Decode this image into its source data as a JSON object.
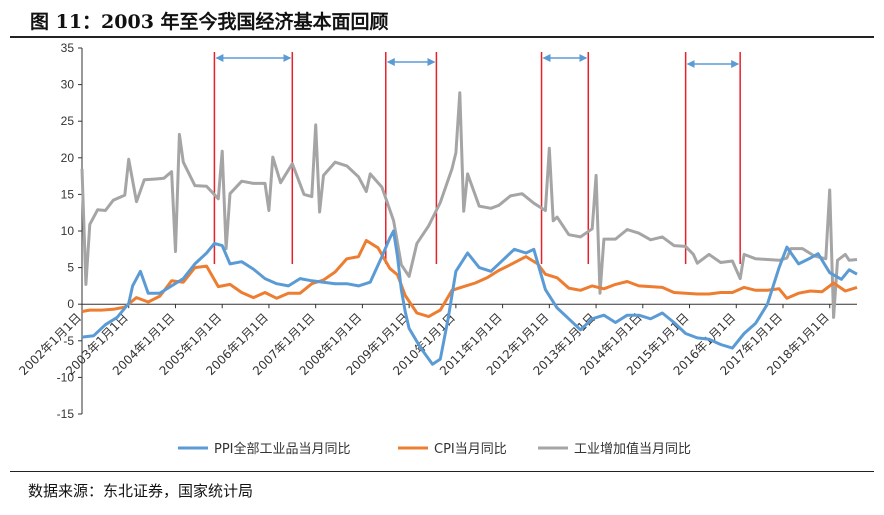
{
  "figure": {
    "title": "图 11：2003 年至今我国经济基本面回顾",
    "source": "数据来源：东北证券，国家统计局"
  },
  "chart_data": {
    "type": "line",
    "ylim": [
      -15,
      35
    ],
    "xlim": [
      "2002-01",
      "2018-08"
    ],
    "y_ticks": [
      -15,
      -10,
      -5,
      0,
      5,
      10,
      15,
      20,
      25,
      30,
      35
    ],
    "x_ticks": [
      {
        "date": "2002-01",
        "label": "2002年1月1日"
      },
      {
        "date": "2003-01",
        "label": "2003年1月1日"
      },
      {
        "date": "2004-01",
        "label": "2004年1月1日"
      },
      {
        "date": "2005-01",
        "label": "2005年1月1日"
      },
      {
        "date": "2006-01",
        "label": "2006年1月1日"
      },
      {
        "date": "2007-01",
        "label": "2007年1月1日"
      },
      {
        "date": "2008-01",
        "label": "2008年1月1日"
      },
      {
        "date": "2009-01",
        "label": "2009年1月1日"
      },
      {
        "date": "2010-01",
        "label": "2010年1月1日"
      },
      {
        "date": "2011-01",
        "label": "2011年1月1日"
      },
      {
        "date": "2012-01",
        "label": "2012年1月1日"
      },
      {
        "date": "2013-01",
        "label": "2013年1月1日"
      },
      {
        "date": "2014-01",
        "label": "2014年1月1日"
      },
      {
        "date": "2015-01",
        "label": "2015年1月1日"
      },
      {
        "date": "2016-01",
        "label": "2016年1月1日"
      },
      {
        "date": "2017-01",
        "label": "2017年1月1日"
      },
      {
        "date": "2018-01",
        "label": "2018年1月1日"
      }
    ],
    "legend_position": "bottom",
    "series": [
      {
        "name": "PPI全部工业品当月同比",
        "color": "#5B9BD5",
        "points": [
          [
            "2002-01",
            -4.5
          ],
          [
            "2002-04",
            -4.3
          ],
          [
            "2002-07",
            -2.8
          ],
          [
            "2002-10",
            -1.8
          ],
          [
            "2003-01",
            0.1
          ],
          [
            "2003-02",
            2.5
          ],
          [
            "2003-04",
            4.5
          ],
          [
            "2003-06",
            1.5
          ],
          [
            "2003-09",
            1.5
          ],
          [
            "2003-12",
            2.5
          ],
          [
            "2004-03",
            3.5
          ],
          [
            "2004-06",
            5.5
          ],
          [
            "2004-09",
            7.0
          ],
          [
            "2004-11",
            8.3
          ],
          [
            "2005-01",
            8.0
          ],
          [
            "2005-03",
            5.5
          ],
          [
            "2005-06",
            5.8
          ],
          [
            "2005-09",
            4.8
          ],
          [
            "2005-12",
            3.5
          ],
          [
            "2006-03",
            2.8
          ],
          [
            "2006-06",
            2.5
          ],
          [
            "2006-09",
            3.5
          ],
          [
            "2006-12",
            3.2
          ],
          [
            "2007-03",
            3.0
          ],
          [
            "2007-06",
            2.8
          ],
          [
            "2007-09",
            2.8
          ],
          [
            "2007-12",
            2.5
          ],
          [
            "2008-03",
            3.0
          ],
          [
            "2008-06",
            6.5
          ],
          [
            "2008-08",
            9.0
          ],
          [
            "2008-09",
            10.0
          ],
          [
            "2008-10",
            6.5
          ],
          [
            "2008-11",
            2.0
          ],
          [
            "2008-12",
            -1.0
          ],
          [
            "2009-01",
            -3.3
          ],
          [
            "2009-04",
            -6.0
          ],
          [
            "2009-07",
            -8.2
          ],
          [
            "2009-09",
            -7.5
          ],
          [
            "2009-11",
            -2.0
          ],
          [
            "2010-01",
            4.5
          ],
          [
            "2010-04",
            7.0
          ],
          [
            "2010-07",
            5.0
          ],
          [
            "2010-10",
            4.5
          ],
          [
            "2011-01",
            6.0
          ],
          [
            "2011-04",
            7.5
          ],
          [
            "2011-07",
            7.0
          ],
          [
            "2011-09",
            7.5
          ],
          [
            "2011-12",
            2.0
          ],
          [
            "2012-03",
            -0.5
          ],
          [
            "2012-06",
            -2.0
          ],
          [
            "2012-09",
            -3.5
          ],
          [
            "2012-12",
            -2.0
          ],
          [
            "2013-03",
            -1.5
          ],
          [
            "2013-06",
            -2.5
          ],
          [
            "2013-09",
            -1.5
          ],
          [
            "2013-12",
            -1.5
          ],
          [
            "2014-03",
            -2.0
          ],
          [
            "2014-06",
            -1.2
          ],
          [
            "2014-09",
            -2.5
          ],
          [
            "2014-12",
            -4.0
          ],
          [
            "2015-03",
            -4.6
          ],
          [
            "2015-06",
            -4.8
          ],
          [
            "2015-09",
            -5.5
          ],
          [
            "2015-12",
            -6.0
          ],
          [
            "2016-03",
            -4.0
          ],
          [
            "2016-06",
            -2.6
          ],
          [
            "2016-09",
            0.0
          ],
          [
            "2016-12",
            5.0
          ],
          [
            "2017-02",
            7.8
          ],
          [
            "2017-05",
            5.5
          ],
          [
            "2017-08",
            6.3
          ],
          [
            "2017-10",
            6.9
          ],
          [
            "2018-01",
            4.3
          ],
          [
            "2018-04",
            3.4
          ],
          [
            "2018-06",
            4.7
          ],
          [
            "2018-08",
            4.1
          ]
        ]
      },
      {
        "name": "CPI当月同比",
        "color": "#ED7D31",
        "points": [
          [
            "2002-01",
            -1.0
          ],
          [
            "2002-03",
            -0.8
          ],
          [
            "2002-06",
            -0.8
          ],
          [
            "2002-09",
            -0.7
          ],
          [
            "2002-12",
            -0.4
          ],
          [
            "2003-03",
            0.9
          ],
          [
            "2003-06",
            0.3
          ],
          [
            "2003-09",
            1.1
          ],
          [
            "2003-12",
            3.2
          ],
          [
            "2004-03",
            3.0
          ],
          [
            "2004-06",
            5.0
          ],
          [
            "2004-09",
            5.2
          ],
          [
            "2004-12",
            2.4
          ],
          [
            "2005-03",
            2.7
          ],
          [
            "2005-06",
            1.6
          ],
          [
            "2005-09",
            0.9
          ],
          [
            "2005-12",
            1.6
          ],
          [
            "2006-03",
            0.8
          ],
          [
            "2006-06",
            1.5
          ],
          [
            "2006-09",
            1.5
          ],
          [
            "2006-12",
            2.8
          ],
          [
            "2007-03",
            3.3
          ],
          [
            "2007-06",
            4.4
          ],
          [
            "2007-09",
            6.2
          ],
          [
            "2007-12",
            6.5
          ],
          [
            "2008-02",
            8.7
          ],
          [
            "2008-05",
            7.7
          ],
          [
            "2008-08",
            4.9
          ],
          [
            "2008-10",
            4.0
          ],
          [
            "2008-12",
            1.2
          ],
          [
            "2009-03",
            -1.2
          ],
          [
            "2009-06",
            -1.7
          ],
          [
            "2009-09",
            -0.8
          ],
          [
            "2009-12",
            1.9
          ],
          [
            "2010-03",
            2.4
          ],
          [
            "2010-06",
            2.9
          ],
          [
            "2010-09",
            3.6
          ],
          [
            "2010-12",
            4.6
          ],
          [
            "2011-03",
            5.4
          ],
          [
            "2011-07",
            6.5
          ],
          [
            "2011-10",
            5.5
          ],
          [
            "2011-12",
            4.1
          ],
          [
            "2012-03",
            3.6
          ],
          [
            "2012-06",
            2.2
          ],
          [
            "2012-09",
            1.9
          ],
          [
            "2012-12",
            2.5
          ],
          [
            "2013-03",
            2.1
          ],
          [
            "2013-06",
            2.7
          ],
          [
            "2013-09",
            3.1
          ],
          [
            "2013-12",
            2.5
          ],
          [
            "2014-03",
            2.4
          ],
          [
            "2014-06",
            2.3
          ],
          [
            "2014-09",
            1.6
          ],
          [
            "2014-12",
            1.5
          ],
          [
            "2015-03",
            1.4
          ],
          [
            "2015-06",
            1.4
          ],
          [
            "2015-09",
            1.6
          ],
          [
            "2015-12",
            1.6
          ],
          [
            "2016-03",
            2.3
          ],
          [
            "2016-06",
            1.9
          ],
          [
            "2016-09",
            1.9
          ],
          [
            "2016-12",
            2.1
          ],
          [
            "2017-02",
            0.8
          ],
          [
            "2017-05",
            1.5
          ],
          [
            "2017-08",
            1.8
          ],
          [
            "2017-11",
            1.7
          ],
          [
            "2018-02",
            2.9
          ],
          [
            "2018-05",
            1.8
          ],
          [
            "2018-08",
            2.3
          ]
        ]
      },
      {
        "name": "工业增加值当月同比",
        "color": "#A5A5A5",
        "points": [
          [
            "2002-01",
            18.5
          ],
          [
            "2002-02",
            2.7
          ],
          [
            "2002-03",
            10.9
          ],
          [
            "2002-05",
            12.9
          ],
          [
            "2002-07",
            12.8
          ],
          [
            "2002-09",
            14.2
          ],
          [
            "2002-12",
            14.9
          ],
          [
            "2003-01",
            19.8
          ],
          [
            "2003-03",
            14.0
          ],
          [
            "2003-05",
            17.0
          ],
          [
            "2003-08",
            17.1
          ],
          [
            "2003-10",
            17.2
          ],
          [
            "2003-12",
            18.1
          ],
          [
            "2004-01",
            7.2
          ],
          [
            "2004-02",
            23.2
          ],
          [
            "2004-03",
            19.4
          ],
          [
            "2004-06",
            16.2
          ],
          [
            "2004-09",
            16.1
          ],
          [
            "2004-12",
            14.4
          ],
          [
            "2005-01",
            20.9
          ],
          [
            "2005-02",
            7.6
          ],
          [
            "2005-03",
            15.1
          ],
          [
            "2005-06",
            16.8
          ],
          [
            "2005-09",
            16.5
          ],
          [
            "2005-12",
            16.5
          ],
          [
            "2006-01",
            12.8
          ],
          [
            "2006-02",
            20.1
          ],
          [
            "2006-04",
            16.6
          ],
          [
            "2006-07",
            19.2
          ],
          [
            "2006-10",
            15.0
          ],
          [
            "2006-12",
            14.7
          ],
          [
            "2007-01",
            24.5
          ],
          [
            "2007-02",
            12.6
          ],
          [
            "2007-03",
            17.6
          ],
          [
            "2007-06",
            19.4
          ],
          [
            "2007-09",
            18.9
          ],
          [
            "2007-12",
            17.4
          ],
          [
            "2008-02",
            15.4
          ],
          [
            "2008-03",
            17.8
          ],
          [
            "2008-06",
            16.0
          ],
          [
            "2008-09",
            11.4
          ],
          [
            "2008-11",
            5.4
          ],
          [
            "2009-01",
            3.8
          ],
          [
            "2009-03",
            8.3
          ],
          [
            "2009-06",
            10.7
          ],
          [
            "2009-09",
            13.9
          ],
          [
            "2009-12",
            18.5
          ],
          [
            "2010-01",
            20.7
          ],
          [
            "2010-02",
            28.9
          ],
          [
            "2010-03",
            12.7
          ],
          [
            "2010-04",
            17.8
          ],
          [
            "2010-07",
            13.4
          ],
          [
            "2010-10",
            13.1
          ],
          [
            "2010-12",
            13.5
          ],
          [
            "2011-03",
            14.8
          ],
          [
            "2011-06",
            15.1
          ],
          [
            "2011-09",
            13.8
          ],
          [
            "2011-12",
            12.8
          ],
          [
            "2012-01",
            21.3
          ],
          [
            "2012-02",
            11.4
          ],
          [
            "2012-03",
            11.9
          ],
          [
            "2012-06",
            9.5
          ],
          [
            "2012-09",
            9.2
          ],
          [
            "2012-12",
            10.3
          ],
          [
            "2013-01",
            17.6
          ],
          [
            "2013-02",
            1.5
          ],
          [
            "2013-03",
            8.9
          ],
          [
            "2013-06",
            8.9
          ],
          [
            "2013-09",
            10.2
          ],
          [
            "2013-12",
            9.7
          ],
          [
            "2014-03",
            8.8
          ],
          [
            "2014-06",
            9.2
          ],
          [
            "2014-09",
            8.0
          ],
          [
            "2014-12",
            7.9
          ],
          [
            "2015-02",
            6.8
          ],
          [
            "2015-03",
            5.6
          ],
          [
            "2015-06",
            6.8
          ],
          [
            "2015-09",
            5.7
          ],
          [
            "2015-12",
            5.9
          ],
          [
            "2016-02",
            3.5
          ],
          [
            "2016-03",
            6.8
          ],
          [
            "2016-06",
            6.2
          ],
          [
            "2016-09",
            6.1
          ],
          [
            "2016-12",
            6.0
          ],
          [
            "2017-02",
            6.3
          ],
          [
            "2017-03",
            7.6
          ],
          [
            "2017-06",
            7.6
          ],
          [
            "2017-09",
            6.6
          ],
          [
            "2017-12",
            6.2
          ],
          [
            "2018-01",
            15.6
          ],
          [
            "2018-02",
            -1.8
          ],
          [
            "2018-03",
            6.0
          ],
          [
            "2018-05",
            6.8
          ],
          [
            "2018-06",
            6.0
          ],
          [
            "2018-08",
            6.1
          ]
        ]
      }
    ],
    "red_markers": [
      "2004-11",
      "2006-07",
      "2008-07",
      "2009-08",
      "2011-11",
      "2012-11",
      "2014-12",
      "2016-02"
    ],
    "arrow_periods": [
      [
        "2004-11",
        "2006-07"
      ],
      [
        "2008-07",
        "2009-08"
      ],
      [
        "2011-11",
        "2012-11"
      ],
      [
        "2014-12",
        "2016-02"
      ]
    ]
  }
}
